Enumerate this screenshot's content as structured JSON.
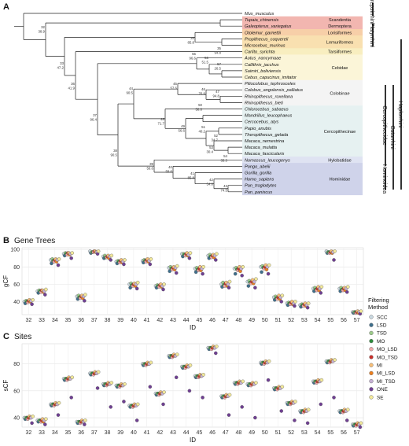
{
  "panel_a": {
    "letter": "A",
    "taxa": [
      "Mus_musculus",
      "Tupaia_chinensis",
      "Galeopterus_variegatus",
      "Otolemur_garnettii",
      "Propithecus_coquereli",
      "Microcebus_murinus",
      "Carlito_syrichta",
      "Aotus_nancymaae",
      "Callithrix_jacchus",
      "Saimiri_boliviensis",
      "Cebus_capucinus_imitator",
      "Piliocolobus_tephrosceles",
      "Colobus_angolensis_palliatus",
      "Rhinopithecus_roxellana",
      "Rhinopithecus_bieti",
      "Chlorocebus_sabaeus",
      "Mandrillus_leucophaeus",
      "Cercocebus_atys",
      "Papio_anubis",
      "Theropithecus_gelada",
      "Macaca_nemestrina",
      "Macaca_mulatta",
      "Macaca_fascicularis",
      "Nomascus_leucogenys",
      "Pongo_abelii",
      "Gorilla_gorilla",
      "Homo_sapiens",
      "Pan_troglodytes",
      "Pan_paniscus"
    ],
    "groups": [
      {
        "label": "Scandentia",
        "color": "#f2b6b0"
      },
      {
        "label": "Dermoptera",
        "color": "#f2b6b0"
      },
      {
        "label": "Lorisiformes",
        "color": "#f7cfa8"
      },
      {
        "label": "Lemuriformes",
        "color": "#f9e0b0"
      },
      {
        "label": "Tarsiiformes",
        "color": "#f8eec0"
      },
      {
        "label": "Cebidae",
        "color": "#fbf5d8"
      },
      {
        "label": "Colobinae",
        "color": "#f4f4f4"
      },
      {
        "label": "Cercopithecinae",
        "color": "#e6f1f1"
      },
      {
        "label": "Hylobatidae",
        "color": "#dfe3f2"
      },
      {
        "label": "Hominidae",
        "color": "#cfd3ea"
      }
    ],
    "clades": [
      "Strepsirrhini",
      "Platyrrhini",
      "Cercopithecidae",
      "Catarrhini",
      "Haplorrhini",
      "Hominoidea"
    ],
    "nodes": [
      {
        "id": "32",
        "score": "38.9"
      },
      {
        "id": "33",
        "score": "47.2"
      },
      {
        "id": "34",
        "score": "85.8"
      },
      {
        "id": "35",
        "score": "94.8"
      },
      {
        "id": "36",
        "score": "41.9"
      },
      {
        "id": "37",
        "score": "96.4"
      },
      {
        "id": "38",
        "score": "90.5"
      },
      {
        "id": "39",
        "score": "56.6"
      },
      {
        "id": "40",
        "score": "58.6"
      },
      {
        "id": "41",
        "score": "85.8"
      },
      {
        "id": "42",
        "score": "54.8"
      },
      {
        "id": "43",
        "score": "74.5"
      },
      {
        "id": "44",
        "score": "90.5"
      },
      {
        "id": "45",
        "score": "57.6"
      },
      {
        "id": "46",
        "score": "76.9"
      },
      {
        "id": "47",
        "score": "94.8"
      },
      {
        "id": "48",
        "score": "71.7"
      },
      {
        "id": "49",
        "score": "56.6"
      },
      {
        "id": "50",
        "score": "58.6"
      },
      {
        "id": "51",
        "score": "40.2"
      },
      {
        "id": "52",
        "score": "34.7"
      },
      {
        "id": "53",
        "score": "30.4"
      },
      {
        "id": "54",
        "score": "35.3"
      },
      {
        "id": "55",
        "score": "96.6"
      },
      {
        "id": "56",
        "score": "51.5"
      },
      {
        "id": "57",
        "score": "26.5"
      }
    ]
  },
  "legend": {
    "title_line1": "Filtering",
    "title_line2": "Method",
    "items": [
      {
        "label": "SCC",
        "color": "#c9d8e0"
      },
      {
        "label": "LSD",
        "color": "#3f6f8c"
      },
      {
        "label": "TSD",
        "color": "#9ccb8a"
      },
      {
        "label": "MO",
        "color": "#2e8a3c"
      },
      {
        "label": "MO_LSD",
        "color": "#f0a8a8"
      },
      {
        "label": "MO_TSD",
        "color": "#c8302b"
      },
      {
        "label": "MI",
        "color": "#f6be78"
      },
      {
        "label": "MI_LSD",
        "color": "#ec7f20"
      },
      {
        "label": "MI_TSD",
        "color": "#c6b1d4"
      },
      {
        "label": "ONE",
        "color": "#6f3f92"
      },
      {
        "label": "SE",
        "color": "#f2e89a"
      }
    ]
  },
  "chart_data": [
    {
      "type": "scatter",
      "letter": "B",
      "title": "Gene Trees",
      "xlabel": "ID",
      "ylabel": "gCF",
      "ylim": [
        25,
        102
      ],
      "yticks": [
        40,
        60,
        80,
        100
      ],
      "categories": [
        "32",
        "33",
        "34",
        "35",
        "36",
        "37",
        "38",
        "39",
        "40",
        "41",
        "42",
        "43",
        "44",
        "45",
        "46",
        "47",
        "48",
        "49",
        "50",
        "51",
        "52",
        "53",
        "54",
        "55",
        "56",
        "57"
      ],
      "series": [
        {
          "name": "SCC",
          "values": [
            40,
            52,
            88,
            95,
            46,
            98,
            92,
            86,
            60,
            87,
            58,
            79,
            95,
            78,
            93,
            60,
            78,
            63,
            80,
            45,
            38,
            36,
            55,
            98,
            55,
            28
          ]
        },
        {
          "name": "LSD",
          "values": [
            38,
            50,
            84,
            93,
            43,
            96,
            90,
            84,
            56,
            85,
            56,
            75,
            92,
            74,
            90,
            57,
            72,
            58,
            74,
            42,
            36,
            34,
            52,
            96,
            52,
            27
          ]
        },
        {
          "name": "TSD",
          "values": [
            41,
            53,
            89,
            96,
            47,
            97,
            93,
            87,
            61,
            88,
            59,
            80,
            95,
            79,
            94,
            62,
            79,
            64,
            81,
            46,
            39,
            37,
            56,
            97,
            56,
            28
          ]
        },
        {
          "name": "MO",
          "values": [
            40,
            52,
            87,
            95,
            45,
            97,
            91,
            86,
            59,
            87,
            58,
            78,
            94,
            77,
            92,
            59,
            77,
            62,
            79,
            44,
            38,
            36,
            54,
            97,
            54,
            28
          ]
        },
        {
          "name": "MO_LSD",
          "values": [
            39,
            51,
            86,
            94,
            44,
            97,
            91,
            85,
            58,
            86,
            57,
            77,
            93,
            76,
            91,
            58,
            76,
            61,
            78,
            43,
            37,
            35,
            53,
            96,
            53,
            27
          ]
        },
        {
          "name": "MO_TSD",
          "values": [
            41,
            53,
            88,
            96,
            46,
            98,
            92,
            87,
            60,
            88,
            59,
            79,
            95,
            78,
            93,
            61,
            78,
            63,
            80,
            45,
            39,
            37,
            55,
            97,
            55,
            28
          ]
        },
        {
          "name": "MI",
          "values": [
            42,
            53,
            89,
            96,
            47,
            98,
            93,
            88,
            61,
            89,
            60,
            80,
            96,
            80,
            94,
            62,
            80,
            65,
            82,
            47,
            40,
            38,
            57,
            98,
            56,
            29
          ]
        },
        {
          "name": "MI_LSD",
          "values": [
            40,
            51,
            86,
            94,
            44,
            97,
            90,
            85,
            58,
            86,
            57,
            77,
            93,
            76,
            91,
            58,
            75,
            61,
            77,
            43,
            37,
            35,
            53,
            96,
            53,
            27
          ]
        },
        {
          "name": "MI_TSD",
          "values": [
            41,
            52,
            88,
            95,
            46,
            97,
            92,
            86,
            60,
            87,
            58,
            79,
            94,
            78,
            93,
            60,
            78,
            63,
            80,
            45,
            38,
            36,
            55,
            97,
            55,
            28
          ]
        },
        {
          "name": "ONE",
          "values": [
            37,
            48,
            82,
            90,
            41,
            95,
            88,
            83,
            55,
            83,
            54,
            73,
            90,
            72,
            88,
            56,
            70,
            56,
            72,
            40,
            35,
            33,
            50,
            88,
            51,
            26
          ]
        },
        {
          "name": "SE",
          "values": [
            42,
            54,
            89,
            96,
            48,
            98,
            93,
            88,
            62,
            89,
            60,
            81,
            96,
            80,
            95,
            63,
            80,
            66,
            82,
            47,
            40,
            38,
            57,
            98,
            57,
            29
          ]
        }
      ]
    },
    {
      "type": "scatter",
      "letter": "C",
      "title": "Sites",
      "xlabel": "ID",
      "ylabel": "sCF",
      "ylim": [
        33,
        95
      ],
      "yticks": [
        40,
        60,
        80
      ],
      "categories": [
        "32",
        "33",
        "34",
        "35",
        "36",
        "37",
        "38",
        "39",
        "40",
        "41",
        "42",
        "43",
        "44",
        "45",
        "46",
        "47",
        "48",
        "49",
        "50",
        "51",
        "52",
        "53",
        "54",
        "55",
        "56",
        "57"
      ],
      "series": [
        {
          "name": "SCC",
          "values": [
            40,
            38,
            50,
            69,
            37,
            73,
            65,
            64,
            49,
            80,
            58,
            86,
            78,
            71,
            92,
            56,
            66,
            65,
            81,
            62,
            51,
            45,
            67,
            82,
            45,
            35
          ]
        },
        {
          "name": "LSD",
          "values": [
            39,
            37,
            49,
            68,
            36,
            72,
            64,
            63,
            48,
            79,
            57,
            85,
            77,
            70,
            91,
            55,
            65,
            64,
            80,
            61,
            50,
            44,
            66,
            81,
            44,
            34
          ]
        },
        {
          "name": "TSD",
          "values": [
            40,
            38,
            50,
            69,
            37,
            73,
            65,
            64,
            49,
            80,
            58,
            86,
            78,
            71,
            92,
            56,
            66,
            65,
            81,
            62,
            51,
            45,
            67,
            82,
            45,
            35
          ]
        },
        {
          "name": "MO",
          "values": [
            40,
            38,
            50,
            69,
            37,
            73,
            65,
            64,
            49,
            80,
            58,
            86,
            78,
            71,
            92,
            56,
            66,
            65,
            81,
            62,
            51,
            45,
            67,
            82,
            45,
            35
          ]
        },
        {
          "name": "MO_LSD",
          "values": [
            39,
            37,
            49,
            68,
            36,
            72,
            64,
            63,
            48,
            79,
            57,
            85,
            77,
            70,
            91,
            55,
            65,
            64,
            80,
            61,
            50,
            44,
            66,
            81,
            44,
            34
          ]
        },
        {
          "name": "MO_TSD",
          "values": [
            40,
            38,
            50,
            69,
            37,
            73,
            65,
            64,
            49,
            80,
            58,
            86,
            78,
            71,
            92,
            56,
            66,
            65,
            81,
            62,
            51,
            45,
            67,
            82,
            45,
            35
          ]
        },
        {
          "name": "MI",
          "values": [
            41,
            39,
            51,
            70,
            38,
            74,
            66,
            65,
            50,
            81,
            59,
            87,
            79,
            72,
            93,
            57,
            67,
            66,
            82,
            63,
            52,
            46,
            68,
            83,
            46,
            36
          ]
        },
        {
          "name": "MI_LSD",
          "values": [
            40,
            37,
            50,
            69,
            37,
            73,
            65,
            64,
            49,
            80,
            58,
            86,
            78,
            71,
            92,
            56,
            66,
            65,
            81,
            62,
            51,
            45,
            67,
            82,
            45,
            35
          ]
        },
        {
          "name": "MI_TSD",
          "values": [
            40,
            38,
            50,
            69,
            37,
            73,
            65,
            64,
            49,
            80,
            58,
            86,
            78,
            71,
            92,
            56,
            66,
            65,
            81,
            62,
            51,
            45,
            67,
            82,
            45,
            35
          ]
        },
        {
          "name": "ONE",
          "values": [
            36,
            35,
            42,
            55,
            35,
            62,
            48,
            52,
            38,
            63,
            50,
            70,
            60,
            55,
            88,
            42,
            48,
            40,
            68,
            45,
            38,
            36,
            50,
            55,
            38,
            33
          ]
        },
        {
          "name": "SE",
          "values": [
            41,
            39,
            51,
            70,
            38,
            74,
            66,
            65,
            50,
            81,
            59,
            87,
            79,
            72,
            93,
            57,
            67,
            66,
            82,
            63,
            52,
            46,
            68,
            83,
            46,
            36
          ]
        }
      ]
    }
  ]
}
